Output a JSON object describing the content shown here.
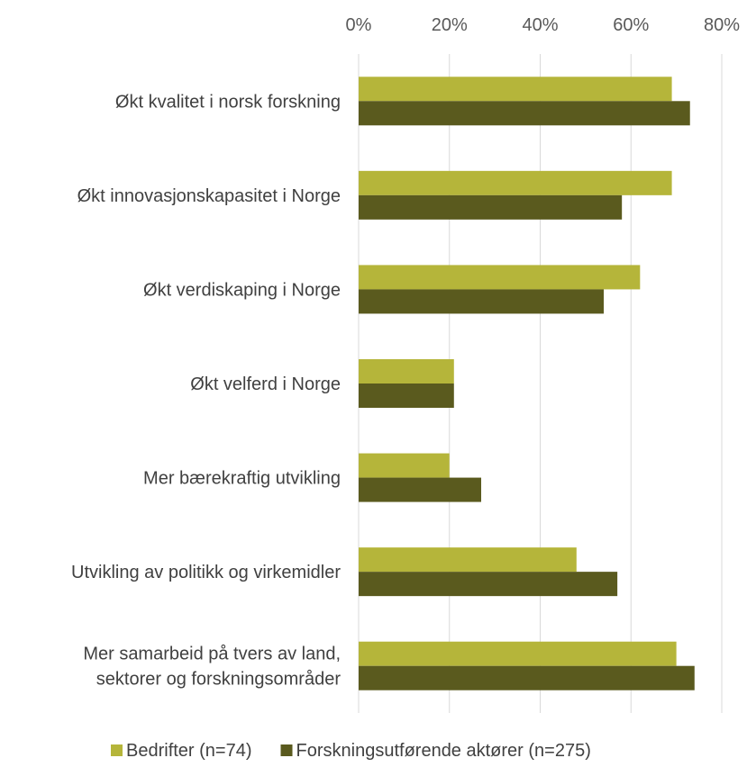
{
  "chart_data": {
    "type": "bar",
    "orientation": "horizontal",
    "categories": [
      [
        "Økt kvalitet i norsk forskning"
      ],
      [
        "Økt innovasjonskapasitet i Norge"
      ],
      [
        "Økt verdiskaping i Norge"
      ],
      [
        "Økt velferd i Norge"
      ],
      [
        "Mer bærekraftig utvikling"
      ],
      [
        "Utvikling av politikk og virkemidler"
      ],
      [
        "Mer samarbeid på tvers av land,",
        "sektorer og forskningsområder"
      ]
    ],
    "series": [
      {
        "name": "Bedrifter (n=74)",
        "color": "#b5b53a",
        "values": [
          69,
          69,
          62,
          21,
          20,
          48,
          70
        ]
      },
      {
        "name": "Forskningsutførende aktører (n=275)",
        "color": "#5a5a1e",
        "values": [
          73,
          58,
          54,
          21,
          27,
          57,
          74
        ]
      }
    ],
    "x_ticks": [
      "0%",
      "20%",
      "40%",
      "60%",
      "80%"
    ],
    "xlim": [
      0,
      80
    ],
    "x_axis_position": "top",
    "grid": true,
    "legend_position": "bottom"
  }
}
